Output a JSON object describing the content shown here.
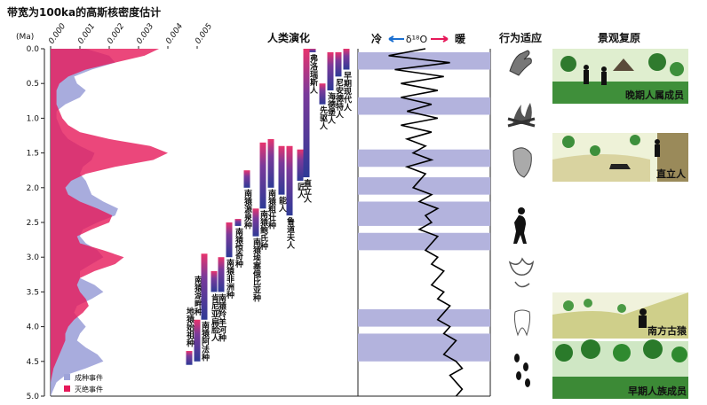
{
  "title": "带宽为100ka的高斯核密度估计",
  "chart_data": [
    {
      "type": "density",
      "ylabel": "(Ma)",
      "ylim": [
        0,
        5
      ],
      "yticks": [
        {
          "value": 0,
          "label": "0.0"
        },
        0.5,
        {
          "value": 1,
          "label": "1.0"
        },
        1.5,
        {
          "value": 2,
          "label": "2.0"
        },
        2.5,
        {
          "value": 3,
          "label": "3.0"
        },
        3.5,
        {
          "value": 4,
          "label": "4.0"
        },
        4.5,
        {
          "value": 5,
          "label": "5.0"
        }
      ],
      "xticks": [
        {
          "value": 0,
          "label": "0.000"
        },
        {
          "value": 0.001,
          "label": "0.001"
        },
        {
          "value": 0.002,
          "label": "0.002"
        },
        {
          "value": 0.003,
          "label": "0.003"
        },
        {
          "value": 0.004,
          "label": "0.004"
        },
        {
          "value": 0.005,
          "label": "0.005"
        }
      ],
      "x": [
        0,
        0.1,
        0.2,
        0.3,
        0.4,
        0.5,
        0.6,
        0.7,
        0.8,
        0.9,
        1,
        1.1,
        1.2,
        1.3,
        1.4,
        1.5,
        1.6,
        1.7,
        1.8,
        1.9,
        2,
        2.1,
        2.2,
        2.3,
        2.4,
        2.5,
        2.6,
        2.7,
        2.8,
        2.9,
        3,
        3.1,
        3.2,
        3.3,
        3.4,
        3.5,
        3.6,
        3.7,
        3.8,
        3.9,
        4,
        4.1,
        4.2,
        4.3,
        4.4,
        4.5,
        4.6,
        4.7,
        4.8,
        4.9,
        5
      ],
      "series": [
        {
          "name": "成种事件",
          "color": "#9ea3d9",
          "values": [
            0.0012,
            0.002,
            0.0022,
            0.0014,
            0.0008,
            0.0009,
            0.0012,
            0.001,
            0.0005,
            0.0002,
            0.0002,
            0.0003,
            0.0004,
            0.0006,
            0.001,
            0.0015,
            0.0014,
            0.0011,
            0.001,
            0.0012,
            0.0013,
            0.0014,
            0.0018,
            0.0023,
            0.0022,
            0.0016,
            0.0011,
            0.001,
            0.0012,
            0.0016,
            0.0018,
            0.0014,
            0.001,
            0.001,
            0.0015,
            0.0018,
            0.0014,
            0.0009,
            0.0008,
            0.001,
            0.0012,
            0.001,
            0.0009,
            0.0012,
            0.0016,
            0.0018,
            0.0012,
            0.0005,
            0.0002,
            0.0001,
            0
          ]
        },
        {
          "name": "灭绝事件",
          "color": "#e6195a",
          "values": [
            0.0037,
            0.0032,
            0.0022,
            0.0012,
            0.0006,
            0.0003,
            0.0002,
            0.0002,
            0.0002,
            0.0003,
            0.0004,
            0.0006,
            0.001,
            0.002,
            0.0034,
            0.004,
            0.0035,
            0.0022,
            0.0012,
            0.0007,
            0.0005,
            0.0006,
            0.001,
            0.0016,
            0.0021,
            0.002,
            0.0014,
            0.0009,
            0.001,
            0.0018,
            0.0025,
            0.0022,
            0.0015,
            0.001,
            0.0009,
            0.001,
            0.0012,
            0.0013,
            0.0011,
            0.0008,
            0.0006,
            0.0005,
            0.0005,
            0.0004,
            0.0003,
            0.0002,
            0.0001,
            5e-05,
            0,
            0,
            0
          ]
        }
      ]
    },
    {
      "type": "range",
      "title": "人类演化",
      "ranges": [
        {
          "name": "地猿始祖种",
          "top": 4.35,
          "bottom": 4.55
        },
        {
          "name": "南猿湖畔种",
          "top": 3.9,
          "bottom": 4.5
        },
        {
          "name": "南猿阿法种",
          "top": 2.95,
          "bottom": 3.9
        },
        {
          "name": "肯尼亚扁脸人",
          "top": 3.2,
          "bottom": 3.5
        },
        {
          "name": "南猿羚羊河种",
          "top": 3.0,
          "bottom": 3.5
        },
        {
          "name": "南猿非洲种",
          "top": 2.5,
          "bottom": 3.0
        },
        {
          "name": "南猿惊奇种",
          "top": 2.45,
          "bottom": 2.55
        },
        {
          "name": "南猿源泉种",
          "top": 1.75,
          "bottom": 2.0
        },
        {
          "name": "南猿埃塞俄比亚种",
          "top": 2.3,
          "bottom": 2.7
        },
        {
          "name": "南猿鲍氏种",
          "top": 1.35,
          "bottom": 2.3
        },
        {
          "name": "南猿粗壮种",
          "top": 1.3,
          "bottom": 2.0
        },
        {
          "name": "能人",
          "top": 1.4,
          "bottom": 2.1
        },
        {
          "name": "鲁道夫人",
          "top": 1.4,
          "bottom": 2.4
        },
        {
          "name": "匠人",
          "top": 1.45,
          "bottom": 1.9
        },
        {
          "name": "直立人",
          "top": 0.0,
          "bottom": 1.85
        },
        {
          "name": "弗洛瑞斯人",
          "top": 0.0,
          "bottom": 0.05
        },
        {
          "name": "先驱人",
          "top": 0.5,
          "bottom": 0.8
        },
        {
          "name": "海德堡人",
          "top": 0.05,
          "bottom": 0.6
        },
        {
          "name": "尼安德特人",
          "top": 0.05,
          "bottom": 0.4
        },
        {
          "name": "早期现代人",
          "top": 0.0,
          "bottom": 0.3
        }
      ]
    },
    {
      "type": "line",
      "cold": "冷",
      "warm": "暖",
      "label": "δ¹⁸O",
      "color": "#000000",
      "band_color": "#b3b3dd",
      "x": [
        0,
        0.1,
        0.2,
        0.3,
        0.4,
        0.5,
        0.6,
        0.7,
        0.8,
        0.9,
        1,
        1.1,
        1.2,
        1.3,
        1.4,
        1.5,
        1.6,
        1.7,
        1.8,
        1.9,
        2,
        2.1,
        2.2,
        2.3,
        2.4,
        2.5,
        2.6,
        2.7,
        2.8,
        2.9,
        3,
        3.1,
        3.2,
        3.3,
        3.4,
        3.5,
        3.6,
        3.7,
        3.8,
        3.9,
        4,
        4.1,
        4.2,
        4.3,
        4.4,
        4.5,
        4.6,
        4.7,
        4.8,
        4.9,
        5
      ],
      "values": [
        0.5,
        0.2,
        0.7,
        0.25,
        0.65,
        0.3,
        0.6,
        0.3,
        0.55,
        0.35,
        0.6,
        0.3,
        0.55,
        0.35,
        0.5,
        0.4,
        0.55,
        0.35,
        0.5,
        0.45,
        0.4,
        0.55,
        0.45,
        0.6,
        0.5,
        0.55,
        0.45,
        0.6,
        0.55,
        0.5,
        0.6,
        0.55,
        0.65,
        0.6,
        0.55,
        0.65,
        0.6,
        0.7,
        0.65,
        0.6,
        0.7,
        0.65,
        0.75,
        0.7,
        0.65,
        0.75,
        0.8,
        0.7,
        0.75,
        0.8,
        0.75
      ],
      "bands": [
        [
          0.05,
          0.3
        ],
        [
          0.7,
          0.95
        ],
        [
          1.45,
          1.7
        ],
        [
          1.85,
          2.1
        ],
        [
          2.2,
          2.55
        ],
        [
          2.65,
          2.9
        ],
        [
          3.75,
          4.0
        ],
        [
          4.1,
          4.5
        ]
      ]
    }
  ],
  "behavior": {
    "title": "行为适应"
  },
  "landscape": {
    "title": "景观复原",
    "panels": [
      "晚期人属成员",
      "直立人",
      "南方古猿",
      "早期人族成员"
    ]
  }
}
